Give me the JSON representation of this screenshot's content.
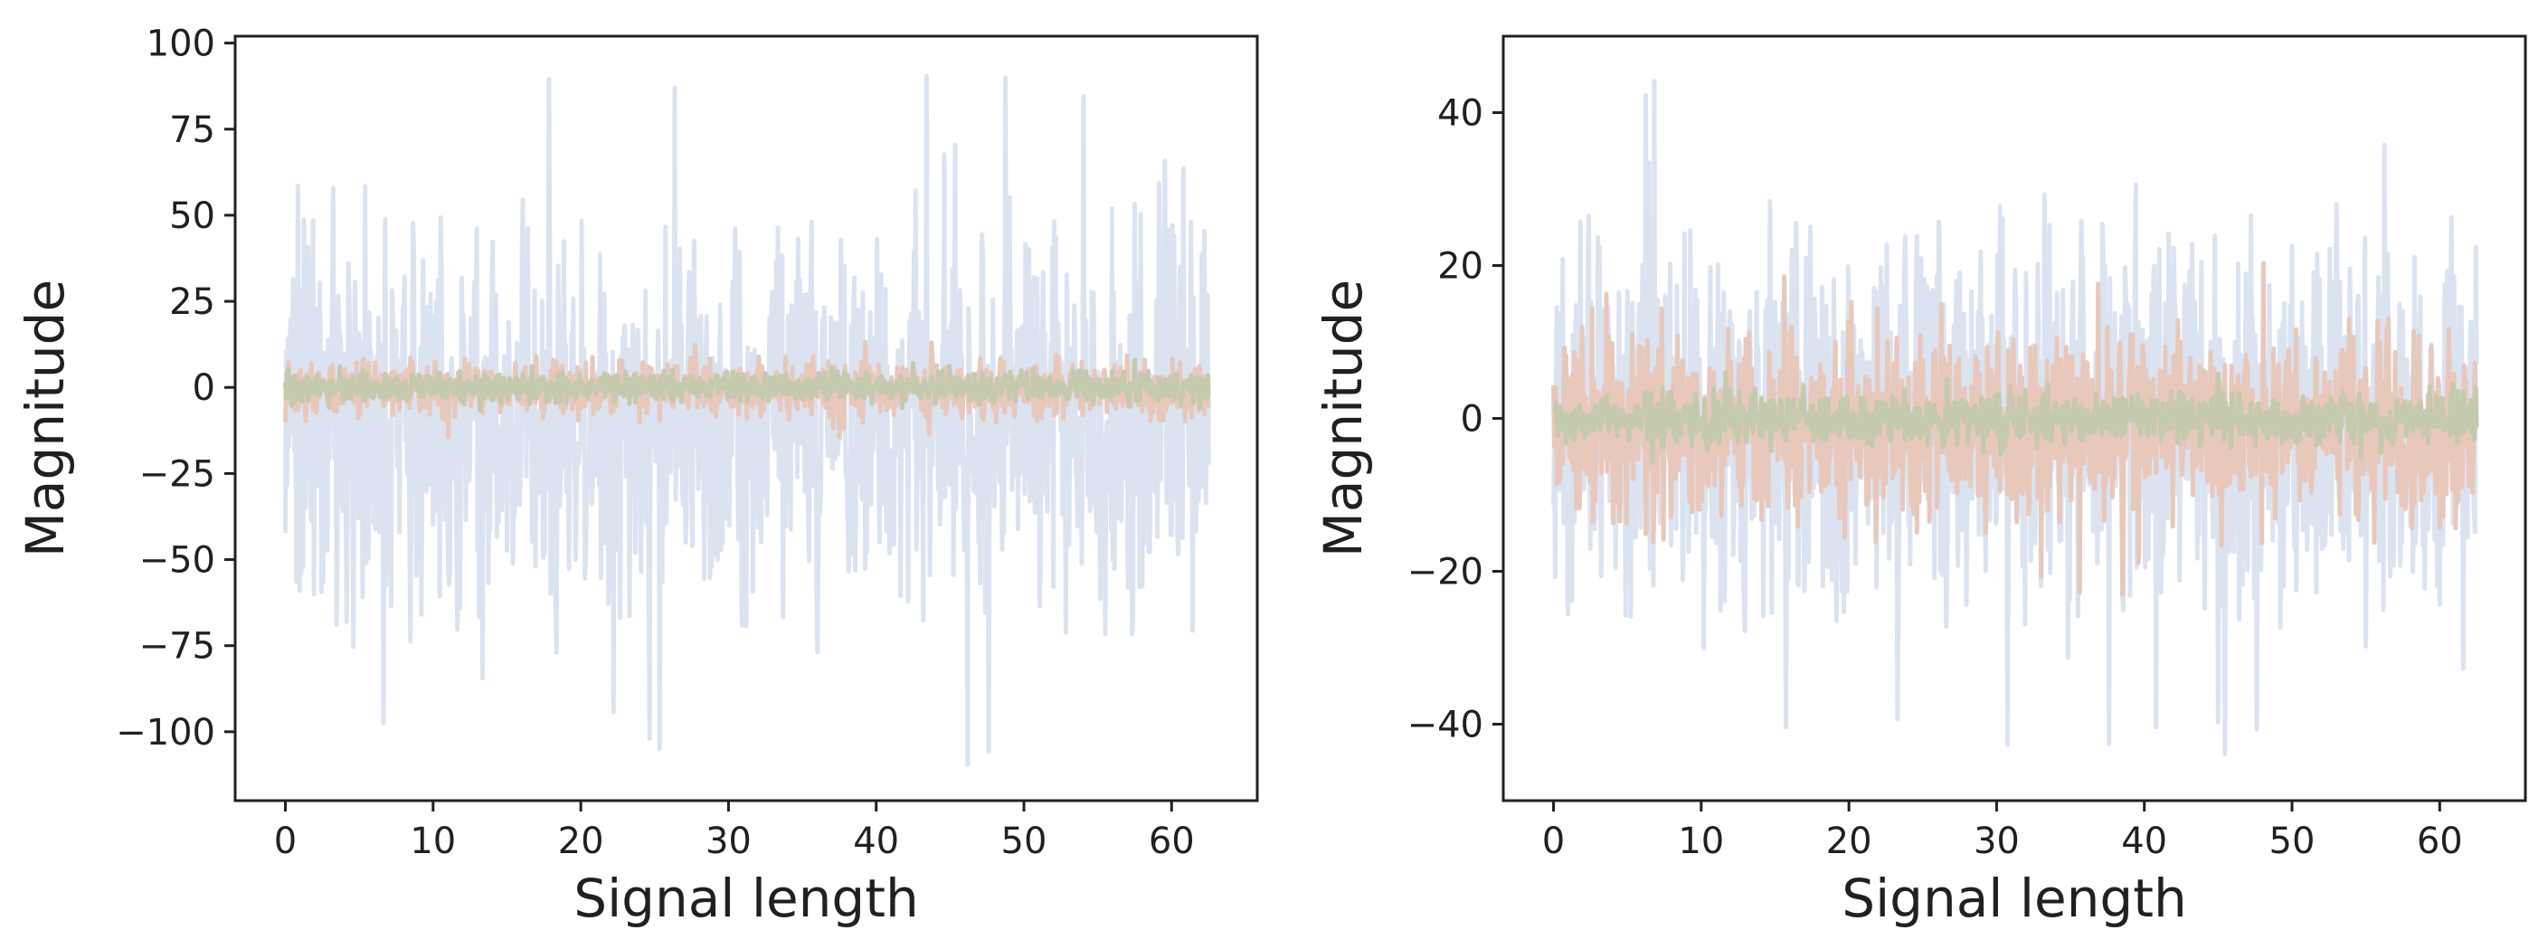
{
  "chart_data": [
    {
      "type": "line",
      "title": "",
      "xlabel": "Signal length",
      "ylabel": "Magnitude",
      "xlim": [
        -3.4,
        65.8
      ],
      "ylim": [
        -120,
        102
      ],
      "xticks": [
        0,
        10,
        20,
        30,
        40,
        50,
        60
      ],
      "yticks": [
        -100,
        -75,
        -50,
        -25,
        0,
        25,
        50,
        75,
        100
      ],
      "grid": false,
      "legend": "none",
      "x_range": [
        0,
        62.5
      ],
      "series": [
        {
          "color": "#dbe3f1",
          "amplitude_band": [
            -110,
            92
          ]
        },
        {
          "color": "#e8c8bb",
          "amplitude_band": [
            -15,
            14
          ]
        },
        {
          "color": "#c5c9ad",
          "amplitude_band": [
            -8,
            8
          ]
        }
      ]
    },
    {
      "type": "line",
      "title": "",
      "xlabel": "Signal length",
      "ylabel": "Magnitude",
      "xlim": [
        -3.4,
        65.8
      ],
      "ylim": [
        -50,
        50
      ],
      "xticks": [
        0,
        10,
        20,
        30,
        40,
        50,
        60
      ],
      "yticks": [
        -40,
        -20,
        0,
        20,
        40
      ],
      "grid": false,
      "legend": "none",
      "x_range": [
        0,
        62.5
      ],
      "series": [
        {
          "color": "#dbe3f1",
          "amplitude_band": [
            -46,
            45
          ]
        },
        {
          "color": "#e8c8bb",
          "amplitude_band": [
            -24,
            22
          ]
        },
        {
          "color": "#c5c9ad",
          "amplitude_band": [
            -6,
            6
          ]
        }
      ]
    }
  ]
}
